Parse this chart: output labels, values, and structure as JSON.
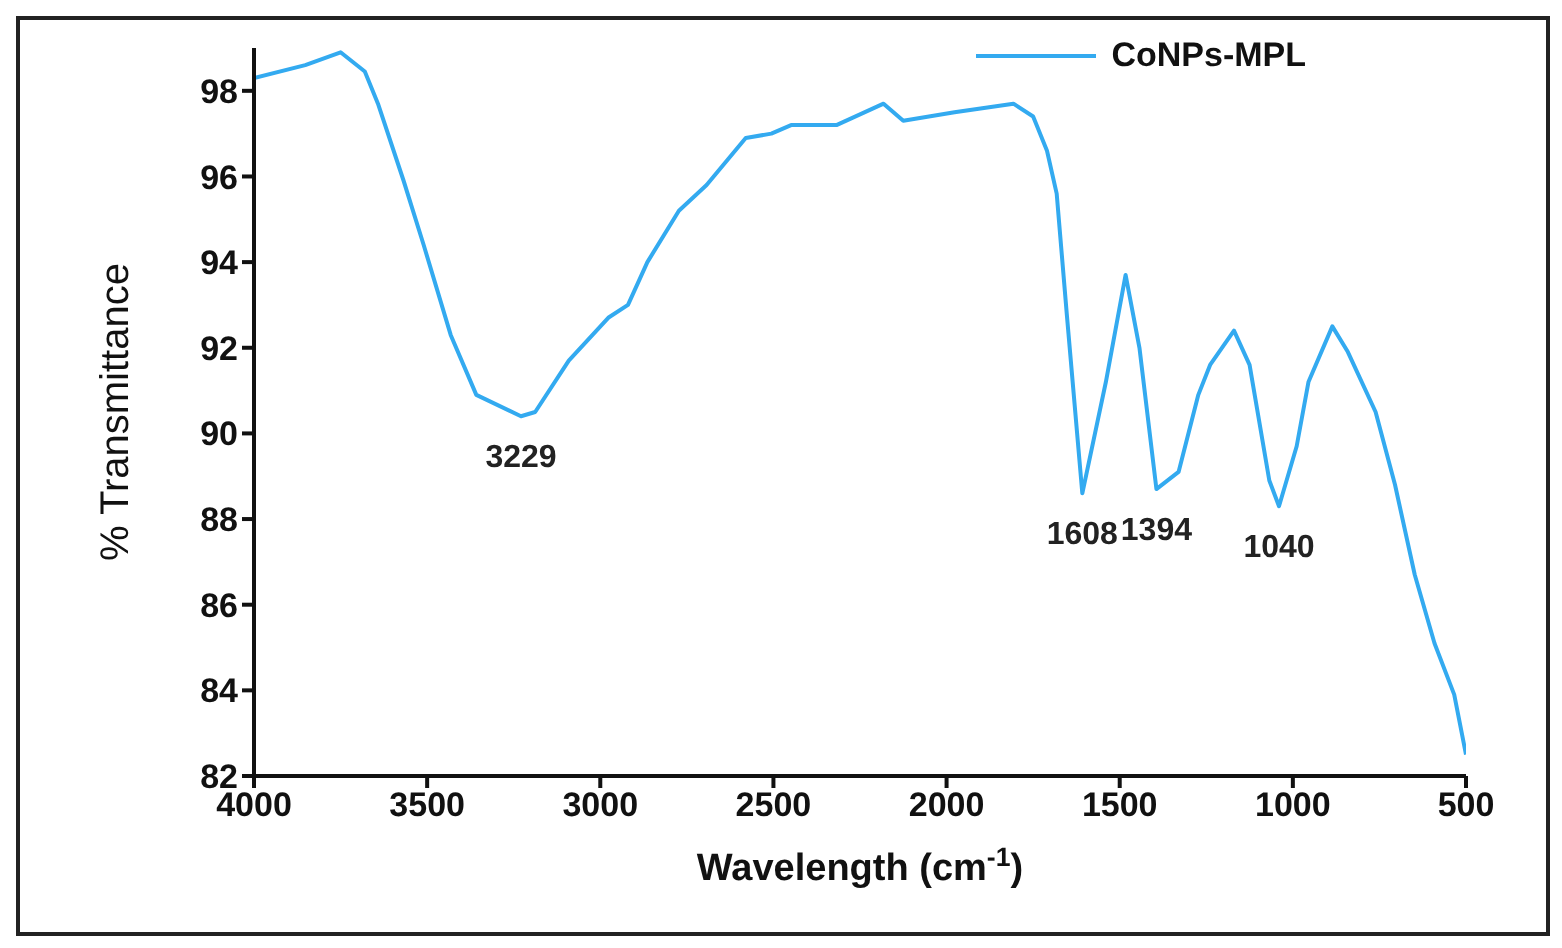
{
  "chart_data": {
    "type": "line",
    "xlabel": "Wavelength (cm$^{-1}$)",
    "ylabel": "% Transmittance",
    "xlim": [
      4000,
      500
    ],
    "xticks": [
      4000,
      3500,
      3000,
      2500,
      2000,
      1500,
      1000,
      500
    ],
    "ylim": [
      82,
      99
    ],
    "yticks": [
      82,
      84,
      86,
      88,
      90,
      92,
      94,
      96,
      98
    ],
    "grid": false,
    "legend": "top right",
    "marker": "none",
    "line_style": "solid",
    "series": [
      {
        "name": "CoNPs-MPL",
        "color": "#33aaf0",
        "x": [
          4000,
          3852,
          3750,
          3680,
          3642,
          3568,
          3510,
          3432,
          3358,
          3229,
          3188,
          3091,
          2977,
          2920,
          2864,
          2773,
          2693,
          2580,
          2506,
          2449,
          2318,
          2182,
          2125,
          1977,
          1807,
          1750,
          1710,
          1682,
          1653,
          1608,
          1540,
          1483,
          1443,
          1394,
          1330,
          1273,
          1239,
          1170,
          1125,
          1068,
          1040,
          989,
          955,
          886,
          841,
          761,
          705,
          648,
          591,
          534,
          500
        ],
        "values": [
          98.3,
          98.6,
          98.9,
          98.45,
          97.7,
          95.9,
          94.4,
          92.3,
          90.9,
          90.4,
          90.5,
          91.7,
          92.7,
          93.0,
          94.0,
          95.2,
          95.8,
          96.9,
          97.0,
          97.2,
          97.2,
          97.7,
          97.3,
          97.5,
          97.7,
          97.4,
          96.6,
          95.6,
          92.8,
          88.6,
          91.2,
          93.7,
          92.0,
          88.7,
          89.1,
          90.9,
          91.6,
          92.4,
          91.6,
          88.9,
          88.3,
          89.7,
          91.2,
          92.5,
          91.9,
          90.5,
          88.8,
          86.7,
          85.1,
          83.9,
          82.5
        ]
      }
    ],
    "annotations": [
      {
        "text": "3229",
        "x": 3229,
        "y": 90.4
      },
      {
        "text": "1608",
        "x": 1608,
        "y": 88.6
      },
      {
        "text": "1394",
        "x": 1394,
        "y": 88.7
      },
      {
        "text": "1040",
        "x": 1040,
        "y": 88.3
      }
    ]
  }
}
